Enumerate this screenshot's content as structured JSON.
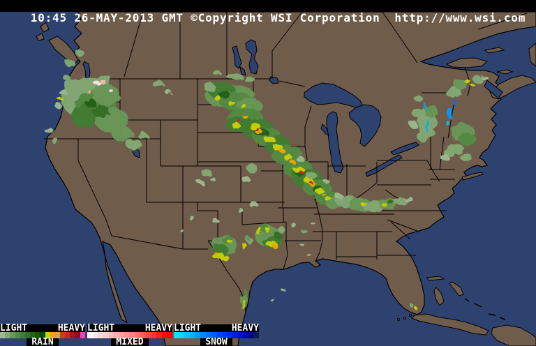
{
  "header": {
    "text": "10:45 26-MAY-2013 GMT ©Copyright WSI Corporation  http://www.wsi.com"
  },
  "colors": {
    "header_bg": "#000000",
    "header_fg": "#ffffff",
    "ocean": "#2e4270",
    "land": "#705c4b",
    "outline": "#000000",
    "legend_bg": "#000000",
    "legend_fg": "#ffffff"
  },
  "legend": {
    "groups": [
      {
        "key": "rain",
        "name": "RAIN",
        "light_label": "LIGHT",
        "heavy_label": "HEAVY",
        "colors": [
          "#9EBB90",
          "#83AB74",
          "#699A59",
          "#528C42",
          "#417E31",
          "#317024",
          "#226316",
          "#15560B",
          "#0A4A03",
          "#C9D300",
          "#F0A800",
          "#DC9C6A",
          "#B84A00",
          "#D42020",
          "#A51616",
          "#8C1010",
          "#FA3CBE"
        ]
      },
      {
        "key": "mixed",
        "name": "MIXED",
        "light_label": "LIGHT",
        "heavy_label": "HEAVY",
        "colors": [
          "#FFF6F6",
          "#FFE8E8",
          "#FFDADA",
          "#FFCCCC",
          "#FFBEBE",
          "#FFAFAF",
          "#FFA0A0",
          "#FF9090",
          "#FF8080",
          "#FF6D6D",
          "#FF5A5A",
          "#FF4646",
          "#FF3232",
          "#FF1E1E",
          "#FF0A0A",
          "#F50000"
        ]
      },
      {
        "key": "snow",
        "name": "SNOW",
        "light_label": "LIGHT",
        "heavy_label": "HEAVY",
        "colors": [
          "#00E8FF",
          "#00D8FF",
          "#00C6FF",
          "#00B2FF",
          "#009CFF",
          "#0086FF",
          "#0070FF",
          "#005CFF",
          "#0048FF",
          "#0036FF",
          "#0026F2",
          "#0019DE",
          "#0010C8",
          "#000AAC",
          "#000588",
          "#0A1A55"
        ]
      }
    ]
  },
  "radar": {
    "echo_format": "[x,y,rx,ry,palette_index,level]",
    "echoes": [
      [
        128,
        142,
        40,
        30,
        0,
        1
      ],
      [
        138,
        152,
        30,
        22,
        0,
        3
      ],
      [
        152,
        136,
        20,
        15,
        0,
        2
      ],
      [
        122,
        167,
        20,
        16,
        0,
        4
      ],
      [
        160,
        172,
        24,
        18,
        0,
        2
      ],
      [
        145,
        160,
        12,
        9,
        0,
        5
      ],
      [
        130,
        148,
        8,
        6,
        0,
        6
      ],
      [
        105,
        122,
        12,
        9,
        0,
        1
      ],
      [
        150,
        114,
        10,
        7,
        0,
        1
      ],
      [
        148,
        117,
        4,
        3,
        1,
        4
      ],
      [
        157,
        128,
        3,
        2,
        1,
        2
      ],
      [
        128,
        131,
        3,
        2,
        1,
        6
      ],
      [
        140,
        120,
        5,
        3,
        1,
        1
      ],
      [
        175,
        192,
        15,
        11,
        0,
        2
      ],
      [
        192,
        207,
        11,
        8,
        0,
        1
      ],
      [
        205,
        195,
        7,
        5,
        0,
        1
      ],
      [
        90,
        132,
        6,
        4,
        0,
        0
      ],
      [
        84,
        152,
        5,
        4,
        0,
        0
      ],
      [
        96,
        112,
        5,
        4,
        0,
        1
      ],
      [
        70,
        187,
        6,
        4,
        0,
        0
      ],
      [
        79,
        202,
        5,
        4,
        0,
        1
      ],
      [
        100,
        90,
        7,
        5,
        0,
        1
      ],
      [
        115,
        76,
        6,
        4,
        0,
        1
      ],
      [
        86,
        142,
        4,
        2,
        0,
        9
      ],
      [
        226,
        120,
        8,
        5,
        0,
        1
      ],
      [
        240,
        131,
        5,
        3,
        0,
        0
      ],
      [
        330,
        138,
        36,
        17,
        0,
        2
      ],
      [
        318,
        130,
        20,
        12,
        0,
        4
      ],
      [
        338,
        145,
        24,
        13,
        0,
        3
      ],
      [
        358,
        152,
        18,
        11,
        0,
        2
      ],
      [
        322,
        136,
        8,
        5,
        0,
        6
      ],
      [
        312,
        141,
        5,
        3,
        0,
        9
      ],
      [
        333,
        149,
        6,
        3,
        0,
        9
      ],
      [
        350,
        153,
        4,
        3,
        0,
        9
      ],
      [
        336,
        110,
        12,
        4,
        0,
        1
      ],
      [
        357,
        113,
        8,
        3,
        0,
        1
      ],
      [
        300,
        125,
        8,
        6,
        0,
        1
      ],
      [
        310,
        104,
        6,
        3,
        0,
        1
      ],
      [
        352,
        170,
        26,
        15,
        0,
        3
      ],
      [
        340,
        178,
        16,
        11,
        0,
        4
      ],
      [
        368,
        184,
        23,
        14,
        0,
        4
      ],
      [
        383,
        196,
        21,
        13,
        0,
        3
      ],
      [
        397,
        207,
        19,
        13,
        0,
        4
      ],
      [
        411,
        222,
        22,
        14,
        0,
        3
      ],
      [
        426,
        241,
        21,
        14,
        0,
        3
      ],
      [
        440,
        256,
        22,
        14,
        0,
        4
      ],
      [
        455,
        270,
        20,
        12,
        0,
        3
      ],
      [
        468,
        283,
        16,
        10,
        0,
        3
      ],
      [
        479,
        292,
        12,
        8,
        0,
        2
      ],
      [
        375,
        190,
        10,
        6,
        0,
        6
      ],
      [
        430,
        246,
        9,
        6,
        0,
        6
      ],
      [
        455,
        271,
        8,
        5,
        0,
        6
      ],
      [
        338,
        180,
        6,
        4,
        0,
        9
      ],
      [
        344,
        175,
        3,
        2,
        0,
        13
      ],
      [
        352,
        168,
        4,
        3,
        0,
        10
      ],
      [
        365,
        181,
        8,
        5,
        0,
        9
      ],
      [
        371,
        189,
        5,
        4,
        0,
        10
      ],
      [
        369,
        186,
        3,
        2,
        0,
        13
      ],
      [
        386,
        200,
        8,
        5,
        0,
        9
      ],
      [
        398,
        211,
        7,
        5,
        0,
        9
      ],
      [
        404,
        216,
        4,
        3,
        0,
        10
      ],
      [
        413,
        226,
        6,
        4,
        0,
        9
      ],
      [
        420,
        233,
        4,
        3,
        0,
        10
      ],
      [
        429,
        244,
        8,
        5,
        0,
        9
      ],
      [
        433,
        248,
        3,
        2,
        0,
        13
      ],
      [
        442,
        259,
        7,
        4,
        0,
        9
      ],
      [
        447,
        263,
        5,
        3,
        0,
        10
      ],
      [
        445,
        261,
        2,
        2,
        0,
        13
      ],
      [
        458,
        274,
        6,
        4,
        0,
        9
      ],
      [
        465,
        280,
        3,
        2,
        0,
        10
      ],
      [
        471,
        286,
        5,
        3,
        0,
        9
      ],
      [
        362,
        242,
        8,
        6,
        0,
        1
      ],
      [
        352,
        257,
        6,
        4,
        0,
        0
      ],
      [
        430,
        228,
        6,
        4,
        0,
        0
      ],
      [
        447,
        252,
        7,
        5,
        0,
        1
      ],
      [
        468,
        260,
        4,
        3,
        0,
        0
      ],
      [
        497,
        289,
        16,
        8,
        0,
        1
      ],
      [
        516,
        293,
        18,
        9,
        0,
        2
      ],
      [
        536,
        296,
        16,
        8,
        0,
        1
      ],
      [
        556,
        292,
        14,
        8,
        0,
        2
      ],
      [
        573,
        288,
        11,
        6,
        0,
        1
      ],
      [
        522,
        294,
        4,
        3,
        0,
        9
      ],
      [
        549,
        292,
        4,
        3,
        0,
        9
      ],
      [
        560,
        290,
        5,
        3,
        0,
        5
      ],
      [
        585,
        285,
        6,
        4,
        0,
        0
      ],
      [
        486,
        282,
        6,
        4,
        0,
        0
      ],
      [
        612,
        175,
        13,
        22,
        0,
        1
      ],
      [
        618,
        160,
        10,
        9,
        0,
        2
      ],
      [
        606,
        196,
        8,
        7,
        0,
        1
      ],
      [
        598,
        162,
        8,
        6,
        0,
        1
      ],
      [
        592,
        178,
        6,
        5,
        0,
        0
      ],
      [
        600,
        142,
        6,
        4,
        0,
        1
      ],
      [
        613,
        182,
        2,
        9,
        2,
        3
      ],
      [
        609,
        152,
        2,
        5,
        2,
        4
      ],
      [
        645,
        162,
        3,
        8,
        2,
        4
      ],
      [
        650,
        147,
        2,
        6,
        2,
        6
      ],
      [
        641,
        176,
        2,
        4,
        2,
        2
      ],
      [
        655,
        120,
        3,
        3,
        2,
        3
      ],
      [
        663,
        190,
        17,
        13,
        0,
        2
      ],
      [
        670,
        200,
        12,
        9,
        0,
        3
      ],
      [
        654,
        213,
        10,
        8,
        0,
        1
      ],
      [
        645,
        217,
        10,
        7,
        0,
        1
      ],
      [
        638,
        226,
        6,
        5,
        0,
        0
      ],
      [
        668,
        226,
        8,
        6,
        0,
        1
      ],
      [
        650,
        132,
        11,
        9,
        0,
        1
      ],
      [
        661,
        121,
        10,
        7,
        0,
        2
      ],
      [
        670,
        117,
        4,
        3,
        0,
        9
      ],
      [
        677,
        122,
        3,
        2,
        0,
        9
      ],
      [
        684,
        114,
        7,
        5,
        0,
        1
      ],
      [
        695,
        112,
        5,
        3,
        0,
        0
      ],
      [
        322,
        352,
        18,
        15,
        0,
        2
      ],
      [
        316,
        360,
        12,
        10,
        0,
        4
      ],
      [
        326,
        344,
        8,
        6,
        0,
        3
      ],
      [
        312,
        366,
        9,
        4,
        0,
        9
      ],
      [
        322,
        370,
        7,
        3,
        0,
        9
      ],
      [
        308,
        363,
        4,
        2,
        0,
        10
      ],
      [
        330,
        347,
        4,
        3,
        0,
        9
      ],
      [
        383,
        338,
        18,
        15,
        0,
        2
      ],
      [
        390,
        347,
        13,
        10,
        0,
        4
      ],
      [
        377,
        326,
        8,
        6,
        0,
        3
      ],
      [
        371,
        331,
        3,
        7,
        0,
        9
      ],
      [
        389,
        350,
        8,
        4,
        0,
        9
      ],
      [
        394,
        353,
        4,
        3,
        0,
        10
      ],
      [
        384,
        330,
        4,
        3,
        0,
        9
      ],
      [
        398,
        338,
        6,
        5,
        0,
        5
      ],
      [
        404,
        330,
        5,
        4,
        0,
        1
      ],
      [
        358,
        345,
        5,
        4,
        0,
        1
      ],
      [
        349,
        352,
        3,
        5,
        0,
        9
      ],
      [
        356,
        342,
        3,
        3,
        0,
        2
      ],
      [
        349,
        432,
        5,
        12,
        0,
        2
      ],
      [
        349,
        436,
        2,
        8,
        0,
        9
      ],
      [
        352,
        420,
        3,
        4,
        0,
        3
      ],
      [
        362,
        292,
        6,
        4,
        0,
        0
      ],
      [
        345,
        302,
        4,
        3,
        0,
        0
      ],
      [
        420,
        322,
        4,
        3,
        0,
        0
      ],
      [
        436,
        332,
        4,
        3,
        0,
        1
      ],
      [
        448,
        320,
        3,
        2,
        0,
        0
      ],
      [
        432,
        350,
        3,
        2,
        0,
        0
      ],
      [
        442,
        365,
        3,
        2,
        0,
        0
      ],
      [
        405,
        415,
        3,
        2,
        0,
        0
      ],
      [
        390,
        430,
        3,
        2,
        0,
        0
      ],
      [
        296,
        248,
        8,
        5,
        0,
        1
      ],
      [
        288,
        262,
        5,
        3,
        0,
        0
      ],
      [
        306,
        258,
        4,
        3,
        0,
        0
      ],
      [
        274,
        312,
        4,
        3,
        0,
        0
      ],
      [
        310,
        318,
        5,
        3,
        0,
        0
      ],
      [
        260,
        330,
        3,
        2,
        0,
        0
      ],
      [
        596,
        442,
        2,
        2,
        0,
        9
      ],
      [
        590,
        438,
        3,
        2,
        0,
        1
      ]
    ]
  }
}
